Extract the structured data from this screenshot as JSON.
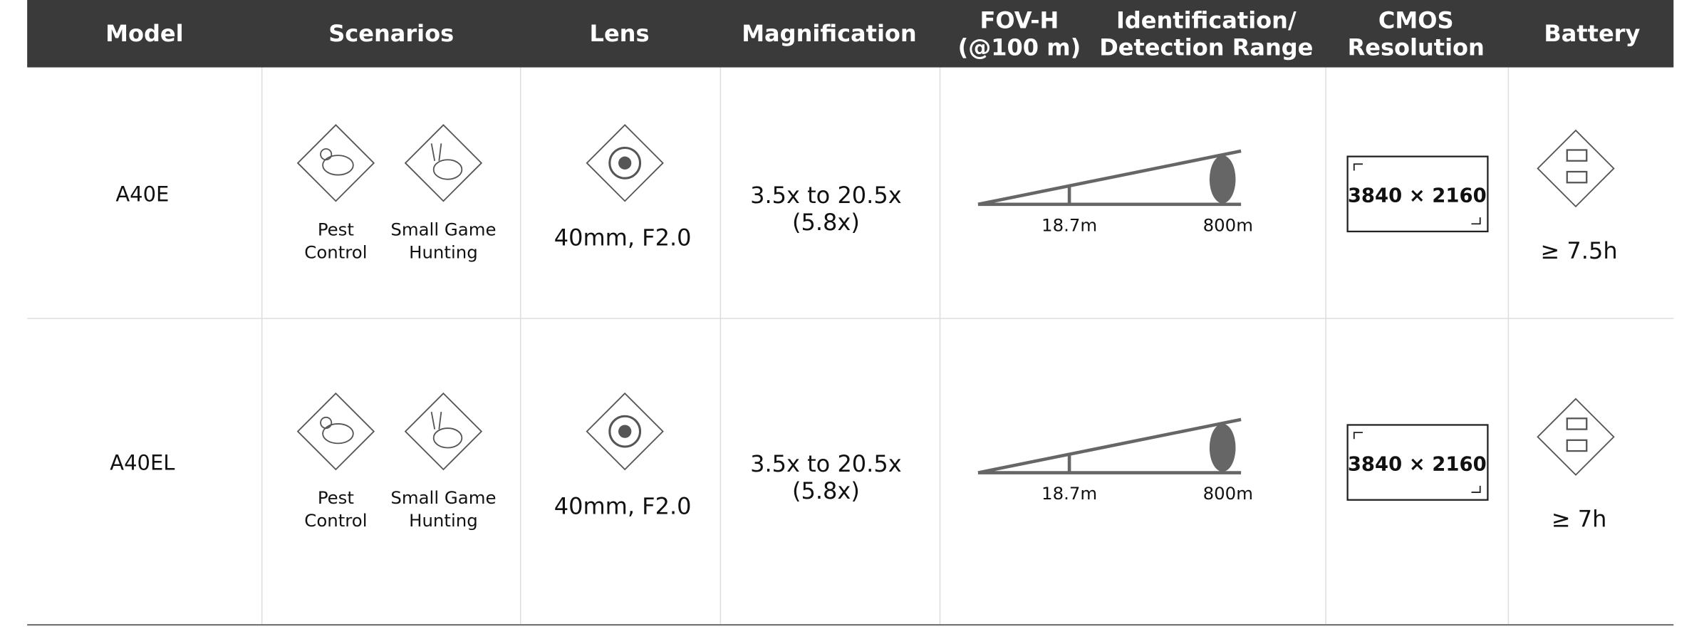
{
  "header": {
    "columns": [
      {
        "lines": [
          "Model"
        ]
      },
      {
        "lines": [
          "Scenarios"
        ]
      },
      {
        "lines": [
          "Lens"
        ]
      },
      {
        "lines": [
          "Magnification"
        ]
      },
      {
        "lines": [
          "FOV-H",
          "(@100 m)"
        ]
      },
      {
        "lines": [
          "Identification/",
          "Detection Range"
        ]
      },
      {
        "lines": [
          "CMOS",
          "Resolution"
        ]
      },
      {
        "lines": [
          "Battery"
        ]
      }
    ]
  },
  "rows": [
    {
      "model": "A40E",
      "scenarios": [
        {
          "lines": [
            "Pest",
            "Control"
          ]
        },
        {
          "lines": [
            "Small Game",
            "Hunting"
          ]
        }
      ],
      "lens": "40mm, F2.0",
      "magnification": [
        "3.5x to 20.5x",
        "(5.8x)"
      ],
      "fov": "18.7m",
      "range": "800m",
      "resolution": "3840 × 2160",
      "battery": "≥ 7.5h"
    },
    {
      "model": "A40EL",
      "scenarios": [
        {
          "lines": [
            "Pest",
            "Control"
          ]
        },
        {
          "lines": [
            "Small Game",
            "Hunting"
          ]
        }
      ],
      "lens": "40mm, F2.0",
      "magnification": [
        "3.5x to 20.5x",
        "(5.8x)"
      ],
      "fov": "18.7m",
      "range": "800m",
      "resolution": "3840 × 2160",
      "battery": "≥ 7h"
    }
  ]
}
